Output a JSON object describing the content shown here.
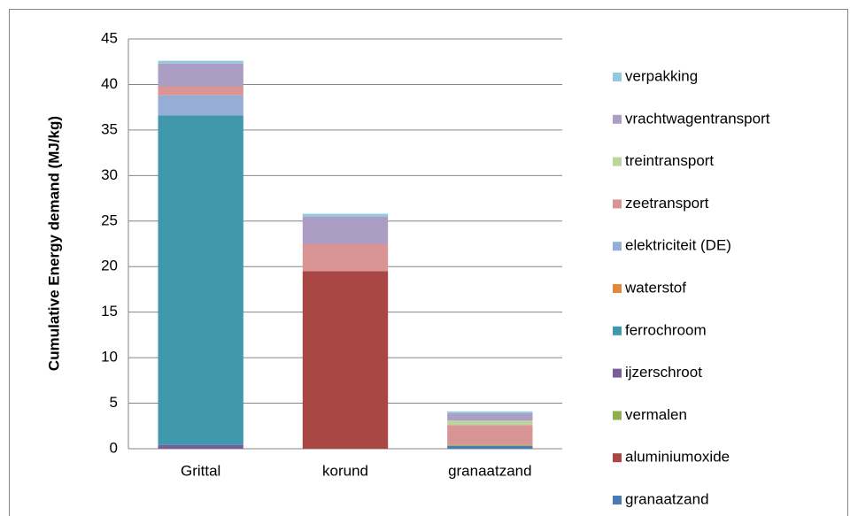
{
  "chart_data": {
    "type": "stacked_bar",
    "y_label": "Cumulative Energy demand (MJ/kg)",
    "categories": [
      "Grittal",
      "korund",
      "granaatzand"
    ],
    "series": [
      {
        "name": "granaatzand",
        "color": "#4a7ab5",
        "values": [
          0,
          0,
          0.3
        ]
      },
      {
        "name": "aluminiumoxide",
        "color": "#a84744",
        "values": [
          0,
          19.5,
          0
        ]
      },
      {
        "name": "vermalen",
        "color": "#8fae4d",
        "values": [
          0,
          0,
          0.1
        ]
      },
      {
        "name": "ijzerschroot",
        "color": "#7b5c9a",
        "values": [
          0.4,
          0,
          0
        ]
      },
      {
        "name": "ferrochroom",
        "color": "#4098ad",
        "values": [
          36.2,
          0,
          0
        ]
      },
      {
        "name": "waterstof",
        "color": "#e3893a",
        "values": [
          0,
          0,
          0
        ]
      },
      {
        "name": "elektriciteit (DE)",
        "color": "#96aed6",
        "values": [
          2.2,
          0,
          0
        ]
      },
      {
        "name": "zeetransport",
        "color": "#d99594",
        "values": [
          1.0,
          3.0,
          2.2
        ]
      },
      {
        "name": "treintransport",
        "color": "#bcd49d",
        "values": [
          0,
          0,
          0.5
        ]
      },
      {
        "name": "vrachtwagentransport",
        "color": "#ab9dc4",
        "values": [
          2.5,
          3.0,
          0.8
        ]
      },
      {
        "name": "verpakking",
        "color": "#92c9dc",
        "values": [
          0.3,
          0.3,
          0.2
        ]
      }
    ],
    "ylim": [
      0,
      45
    ],
    "yticks": [
      0,
      5,
      10,
      15,
      20,
      25,
      30,
      35,
      40,
      45
    ],
    "grid": true,
    "legend": "right"
  }
}
